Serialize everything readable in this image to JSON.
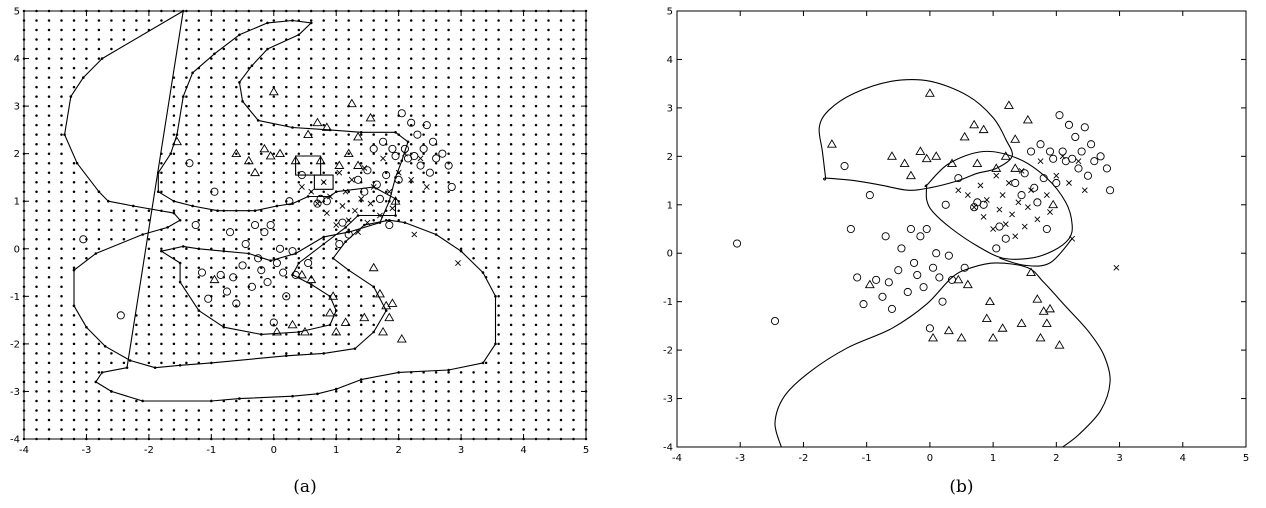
{
  "chart_data": [
    {
      "type": "scatter",
      "caption": "(a)",
      "xlim": [
        -4,
        5
      ],
      "ylim": [
        -4,
        5
      ],
      "xticks": [
        "-4",
        "-3",
        "-2",
        "-1",
        "0",
        "1",
        "2",
        "3",
        "4",
        "5"
      ],
      "yticks": [
        "-4",
        "-3",
        "-2",
        "-1",
        "0",
        "1",
        "2",
        "3",
        "4",
        "5"
      ],
      "grid": false,
      "grid_dots": {
        "step": 0.2,
        "region": "outside decision boundary"
      },
      "boundary_outer": [
        [
          -1.45,
          5
        ],
        [
          -2.75,
          4
        ],
        [
          -3.05,
          3.6
        ],
        [
          -3.25,
          3.2
        ],
        [
          -3.35,
          2.4
        ],
        [
          -3.15,
          1.8
        ],
        [
          -2.8,
          1.2
        ],
        [
          -2.65,
          1.0
        ],
        [
          -2.25,
          0.9
        ],
        [
          -1.6,
          0.75
        ],
        [
          -1.5,
          0.6
        ],
        [
          -1.7,
          0.45
        ],
        [
          -2.1,
          0.3
        ],
        [
          -2.85,
          -0.1
        ],
        [
          -3.2,
          -0.45
        ],
        [
          -3.2,
          -1.2
        ],
        [
          -3.0,
          -1.65
        ],
        [
          -2.7,
          -2.05
        ],
        [
          -2.3,
          -2.35
        ],
        [
          -1.9,
          -2.5
        ],
        [
          -1.5,
          -2.45
        ],
        [
          -1.0,
          -2.4
        ],
        [
          0.2,
          -2.25
        ],
        [
          0.8,
          -2.2
        ],
        [
          1.3,
          -2.1
        ],
        [
          1.6,
          -1.75
        ],
        [
          1.8,
          -1.3
        ],
        [
          1.6,
          -0.8
        ],
        [
          1.2,
          -0.45
        ],
        [
          0.95,
          -0.2
        ],
        [
          1.15,
          0.15
        ],
        [
          1.45,
          0.5
        ],
        [
          1.85,
          0.6
        ],
        [
          2.1,
          0.55
        ],
        [
          2.6,
          0.3
        ],
        [
          3.0,
          -0.05
        ],
        [
          3.35,
          -0.5
        ],
        [
          3.55,
          -1.0
        ],
        [
          3.55,
          -2.0
        ],
        [
          3.35,
          -2.4
        ],
        [
          2.8,
          -2.55
        ],
        [
          2.0,
          -2.6
        ],
        [
          1.4,
          -2.75
        ],
        [
          1.0,
          -2.95
        ],
        [
          0.7,
          -3.05
        ],
        [
          0.3,
          -3.1
        ],
        [
          -0.55,
          -3.15
        ],
        [
          -1.0,
          -3.2
        ],
        [
          -2.1,
          -3.2
        ],
        [
          -2.6,
          -3.0
        ],
        [
          -2.85,
          -2.8
        ],
        [
          -2.75,
          -2.6
        ],
        [
          -2.35,
          -2.5
        ]
      ],
      "boundary_inner": [
        [
          -1.8,
          -0.05
        ],
        [
          -1.5,
          -0.3
        ],
        [
          -1.5,
          -0.7
        ],
        [
          -1.2,
          -1.3
        ],
        [
          -0.8,
          -1.65
        ],
        [
          -0.2,
          -1.8
        ],
        [
          0.4,
          -1.75
        ],
        [
          0.9,
          -1.6
        ],
        [
          1.0,
          -1.3
        ],
        [
          0.9,
          -1.0
        ],
        [
          0.6,
          -0.75
        ],
        [
          0.3,
          -0.55
        ],
        [
          0.4,
          -0.3
        ],
        [
          0.8,
          0.1
        ],
        [
          1.15,
          0.45
        ],
        [
          1.35,
          0.7
        ],
        [
          1.95,
          0.7
        ],
        [
          1.95,
          1.05
        ],
        [
          1.6,
          1.3
        ],
        [
          1.0,
          1.2
        ],
        [
          0.9,
          1.1
        ],
        [
          0.55,
          1.1
        ],
        [
          0.3,
          0.95
        ],
        [
          0.05,
          0.9
        ],
        [
          -0.3,
          0.8
        ],
        [
          -0.9,
          0.8
        ],
        [
          -1.3,
          0.9
        ],
        [
          -1.6,
          1.0
        ],
        [
          -1.85,
          1.2
        ],
        [
          -1.85,
          1.6
        ],
        [
          -1.65,
          2.0
        ],
        [
          -1.55,
          2.4
        ],
        [
          -1.45,
          3.2
        ],
        [
          -1.3,
          3.7
        ],
        [
          -0.95,
          4.1
        ],
        [
          -0.55,
          4.5
        ],
        [
          -0.1,
          4.75
        ],
        [
          0.3,
          4.8
        ],
        [
          0.6,
          4.75
        ],
        [
          0.4,
          4.5
        ],
        [
          -0.1,
          4.2
        ],
        [
          -0.35,
          3.85
        ],
        [
          -0.55,
          3.5
        ],
        [
          -0.5,
          3.1
        ],
        [
          -0.25,
          2.7
        ],
        [
          0.3,
          2.55
        ],
        [
          0.9,
          2.5
        ],
        [
          1.4,
          2.45
        ],
        [
          1.95,
          2.45
        ],
        [
          2.15,
          2.25
        ],
        [
          2.05,
          1.85
        ],
        [
          1.95,
          1.5
        ],
        [
          1.85,
          1.0
        ],
        [
          1.7,
          0.55
        ],
        [
          1.2,
          0.35
        ],
        [
          0.8,
          0.25
        ],
        [
          0.35,
          -0.1
        ],
        [
          -0.05,
          -0.25
        ],
        [
          -0.4,
          -0.1
        ],
        [
          -0.8,
          -0.05
        ],
        [
          -1.2,
          0.0
        ],
        [
          -1.45,
          0.05
        ]
      ],
      "boundary_box": [
        [
          0.35,
          1.55
        ],
        [
          0.75,
          1.55
        ],
        [
          0.75,
          1.95
        ],
        [
          0.35,
          1.95
        ]
      ],
      "boundary_box2": [
        [
          0.65,
          1.25
        ],
        [
          0.95,
          1.25
        ],
        [
          0.95,
          1.55
        ],
        [
          0.65,
          1.55
        ]
      ]
    },
    {
      "type": "scatter",
      "caption": "(b)",
      "xlim": [
        -4,
        5
      ],
      "ylim": [
        -4,
        5
      ],
      "xticks": [
        "-4",
        "-3",
        "-2",
        "-1",
        "0",
        "1",
        "2",
        "3",
        "4",
        "5"
      ],
      "yticks": [
        "-4",
        "-3",
        "-2",
        "-1",
        "0",
        "1",
        "2",
        "3",
        "4",
        "5"
      ],
      "grid": false,
      "curve_top": [
        [
          -1.65,
          1.55
        ],
        [
          -1.7,
          2.1
        ],
        [
          -1.75,
          2.6
        ],
        [
          -1.6,
          2.95
        ],
        [
          -1.2,
          3.3
        ],
        [
          -0.6,
          3.55
        ],
        [
          0.0,
          3.55
        ],
        [
          0.6,
          3.25
        ],
        [
          1.0,
          2.8
        ],
        [
          1.2,
          2.35
        ],
        [
          1.3,
          2.0
        ],
        [
          1.05,
          1.75
        ],
        [
          0.75,
          1.65
        ],
        [
          0.45,
          1.5
        ],
        [
          0.0,
          1.35
        ],
        [
          -0.35,
          1.3
        ],
        [
          -0.75,
          1.4
        ],
        [
          -1.2,
          1.5
        ],
        [
          -1.65,
          1.55
        ]
      ],
      "curve_ellipse": [
        [
          -0.05,
          1.4
        ],
        [
          0.3,
          1.85
        ],
        [
          0.85,
          2.1
        ],
        [
          1.4,
          1.95
        ],
        [
          1.85,
          1.55
        ],
        [
          2.15,
          1.05
        ],
        [
          2.25,
          0.6
        ],
        [
          2.2,
          0.3
        ],
        [
          1.95,
          0.05
        ],
        [
          1.6,
          -0.1
        ],
        [
          1.15,
          -0.1
        ],
        [
          0.75,
          0.15
        ],
        [
          0.35,
          0.5
        ],
        [
          0.05,
          0.85
        ],
        [
          -0.05,
          1.1
        ],
        [
          -0.05,
          1.4
        ]
      ],
      "curve_lower": [
        [
          -2.35,
          -4.0
        ],
        [
          -2.45,
          -3.5
        ],
        [
          -2.3,
          -2.95
        ],
        [
          -1.9,
          -2.45
        ],
        [
          -1.3,
          -1.95
        ],
        [
          -0.6,
          -1.55
        ],
        [
          -0.05,
          -1.05
        ],
        [
          0.35,
          -0.5
        ],
        [
          0.65,
          -0.3
        ],
        [
          1.05,
          -0.2
        ],
        [
          1.55,
          -0.3
        ],
        [
          1.8,
          -0.6
        ],
        [
          2.15,
          -1.1
        ],
        [
          2.5,
          -1.6
        ],
        [
          2.75,
          -2.1
        ],
        [
          2.85,
          -2.65
        ],
        [
          2.7,
          -3.25
        ],
        [
          2.35,
          -3.75
        ],
        [
          2.1,
          -4.0
        ]
      ],
      "curve_link": [
        [
          2.25,
          0.3
        ],
        [
          1.9,
          -0.2
        ],
        [
          1.5,
          -0.25
        ],
        [
          1.1,
          -0.1
        ]
      ]
    }
  ],
  "series_points": {
    "circle": [
      [
        -3.05,
        0.2
      ],
      [
        -2.45,
        -1.4
      ],
      [
        -1.35,
        1.8
      ],
      [
        -1.25,
        0.5
      ],
      [
        -1.15,
        -0.5
      ],
      [
        -1.05,
        -1.05
      ],
      [
        -0.95,
        1.2
      ],
      [
        -0.85,
        -0.55
      ],
      [
        -0.75,
        -0.9
      ],
      [
        -0.7,
        0.35
      ],
      [
        -0.65,
        -0.6
      ],
      [
        -0.6,
        -1.15
      ],
      [
        -0.5,
        -0.35
      ],
      [
        -0.45,
        0.1
      ],
      [
        -0.35,
        -0.8
      ],
      [
        -0.3,
        0.5
      ],
      [
        -0.25,
        -0.2
      ],
      [
        -0.2,
        -0.45
      ],
      [
        -0.15,
        0.35
      ],
      [
        -0.1,
        -0.7
      ],
      [
        -0.05,
        0.5
      ],
      [
        0.0,
        -1.55
      ],
      [
        0.05,
        -0.3
      ],
      [
        0.1,
        0.0
      ],
      [
        0.15,
        -0.5
      ],
      [
        0.2,
        -1.0
      ],
      [
        0.25,
        1.0
      ],
      [
        0.3,
        -0.05
      ],
      [
        0.35,
        -0.55
      ],
      [
        0.45,
        1.55
      ],
      [
        0.55,
        -0.3
      ],
      [
        0.7,
        0.95
      ],
      [
        0.75,
        1.05
      ],
      [
        0.85,
        1.0
      ],
      [
        1.05,
        0.1
      ],
      [
        1.1,
        0.55
      ],
      [
        1.2,
        0.3
      ],
      [
        1.35,
        1.45
      ],
      [
        1.45,
        1.2
      ],
      [
        1.5,
        1.65
      ],
      [
        1.6,
        2.1
      ],
      [
        1.65,
        1.35
      ],
      [
        1.7,
        1.05
      ],
      [
        1.75,
        2.25
      ],
      [
        1.8,
        1.55
      ],
      [
        1.85,
        0.5
      ],
      [
        1.9,
        2.1
      ],
      [
        1.95,
        1.95
      ],
      [
        2.0,
        1.45
      ],
      [
        2.05,
        2.85
      ],
      [
        2.1,
        2.1
      ],
      [
        2.15,
        1.9
      ],
      [
        2.2,
        2.65
      ],
      [
        2.25,
        1.95
      ],
      [
        2.3,
        2.4
      ],
      [
        2.35,
        1.75
      ],
      [
        2.4,
        2.1
      ],
      [
        2.45,
        2.6
      ],
      [
        2.5,
        1.6
      ],
      [
        2.55,
        2.25
      ],
      [
        2.6,
        1.9
      ],
      [
        2.7,
        2.0
      ],
      [
        2.8,
        1.75
      ],
      [
        2.85,
        1.3
      ]
    ],
    "cross": [
      [
        0.45,
        1.3
      ],
      [
        0.6,
        1.2
      ],
      [
        0.7,
        0.95
      ],
      [
        0.8,
        1.4
      ],
      [
        0.85,
        0.75
      ],
      [
        0.9,
        1.1
      ],
      [
        1.0,
        0.5
      ],
      [
        1.05,
        1.6
      ],
      [
        1.1,
        0.9
      ],
      [
        1.15,
        1.2
      ],
      [
        1.2,
        0.6
      ],
      [
        1.25,
        1.45
      ],
      [
        1.3,
        0.8
      ],
      [
        1.35,
        0.35
      ],
      [
        1.4,
        1.05
      ],
      [
        1.45,
        1.7
      ],
      [
        1.5,
        0.55
      ],
      [
        1.55,
        0.95
      ],
      [
        1.6,
        1.3
      ],
      [
        1.7,
        0.7
      ],
      [
        1.75,
        1.9
      ],
      [
        1.85,
        1.2
      ],
      [
        1.9,
        0.85
      ],
      [
        2.0,
        1.6
      ],
      [
        2.1,
        2.0
      ],
      [
        2.2,
        1.45
      ],
      [
        2.25,
        0.3
      ],
      [
        2.35,
        1.9
      ],
      [
        2.45,
        1.3
      ],
      [
        2.95,
        -0.3
      ]
    ],
    "triangle": [
      [
        -1.55,
        2.25
      ],
      [
        -0.95,
        -0.65
      ],
      [
        -0.6,
        2.0
      ],
      [
        -0.4,
        1.85
      ],
      [
        -0.3,
        1.6
      ],
      [
        -0.15,
        2.1
      ],
      [
        -0.05,
        1.95
      ],
      [
        0.0,
        3.3
      ],
      [
        0.05,
        -1.75
      ],
      [
        0.1,
        2.0
      ],
      [
        0.3,
        -1.6
      ],
      [
        0.35,
        1.85
      ],
      [
        0.45,
        -0.55
      ],
      [
        0.5,
        -1.75
      ],
      [
        0.55,
        2.4
      ],
      [
        0.6,
        -0.65
      ],
      [
        0.7,
        2.65
      ],
      [
        0.75,
        1.85
      ],
      [
        0.85,
        2.55
      ],
      [
        0.9,
        -1.35
      ],
      [
        1.0,
        -1.75
      ],
      [
        1.05,
        1.75
      ],
      [
        1.15,
        -1.55
      ],
      [
        1.2,
        2.0
      ],
      [
        1.25,
        3.05
      ],
      [
        1.35,
        1.75
      ],
      [
        1.45,
        -1.45
      ],
      [
        1.55,
        2.75
      ],
      [
        1.6,
        -0.4
      ],
      [
        1.7,
        -0.95
      ],
      [
        1.75,
        -1.75
      ],
      [
        1.8,
        -1.2
      ],
      [
        1.85,
        -1.45
      ],
      [
        1.9,
        -1.15
      ],
      [
        1.95,
        1.0
      ],
      [
        2.05,
        -1.9
      ],
      [
        1.35,
        2.35
      ],
      [
        0.95,
        -1.0
      ]
    ]
  }
}
